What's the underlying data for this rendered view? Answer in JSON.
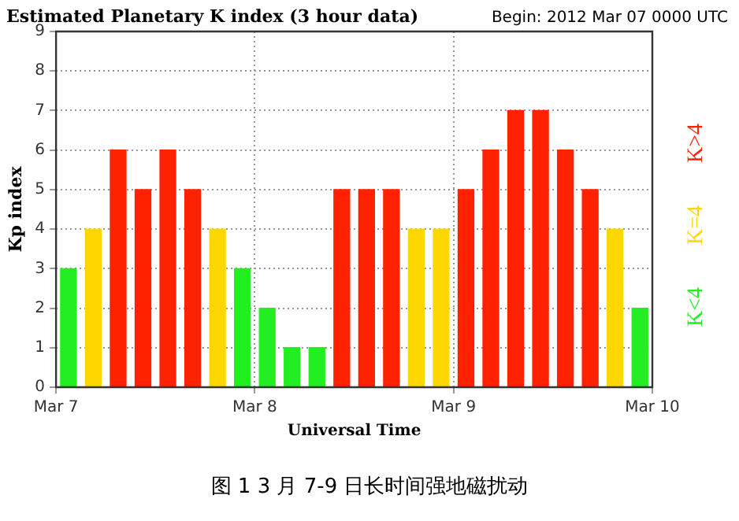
{
  "chart_data": {
    "type": "bar",
    "title": "Estimated Planetary K index (3 hour data)",
    "subtitle": "Begin: 2012 Mar 07 0000 UTC",
    "xlabel": "Universal Time",
    "ylabel": "Kp index",
    "x": [
      "2012-03-07T01:30",
      "2012-03-07T04:30",
      "2012-03-07T07:30",
      "2012-03-07T10:30",
      "2012-03-07T13:30",
      "2012-03-07T16:30",
      "2012-03-07T19:30",
      "2012-03-07T22:30",
      "2012-03-08T01:30",
      "2012-03-08T04:30",
      "2012-03-08T07:30",
      "2012-03-08T10:30",
      "2012-03-08T13:30",
      "2012-03-08T16:30",
      "2012-03-08T19:30",
      "2012-03-08T22:30",
      "2012-03-09T01:30",
      "2012-03-09T04:30",
      "2012-03-09T07:30",
      "2012-03-09T10:30",
      "2012-03-09T13:30",
      "2012-03-09T16:30",
      "2012-03-09T19:30",
      "2012-03-09T22:30"
    ],
    "series": [
      {
        "name": "K<4",
        "color": "#22ee22",
        "values": [
          3,
          null,
          null,
          null,
          null,
          null,
          null,
          3,
          2,
          1,
          1,
          null,
          null,
          null,
          null,
          null,
          null,
          null,
          null,
          null,
          null,
          null,
          null,
          2
        ]
      },
      {
        "name": "K=4",
        "color": "#ffd700",
        "values": [
          null,
          4,
          null,
          null,
          null,
          null,
          4,
          null,
          null,
          null,
          null,
          null,
          null,
          null,
          4,
          4,
          null,
          null,
          null,
          null,
          null,
          null,
          4,
          null
        ]
      },
      {
        "name": "K>4",
        "color": "#ff2200",
        "values": [
          null,
          null,
          6,
          5,
          6,
          5,
          null,
          null,
          null,
          null,
          null,
          5,
          5,
          5,
          null,
          null,
          5,
          6,
          7,
          7,
          6,
          5,
          null,
          null
        ]
      }
    ],
    "xlim": [
      "2012-03-07T00:00",
      "2012-03-10T00:00"
    ],
    "xticks": [
      {
        "value": "2012-03-07T00:00",
        "label": "Mar 7"
      },
      {
        "value": "2012-03-08T00:00",
        "label": "Mar 8"
      },
      {
        "value": "2012-03-09T00:00",
        "label": "Mar 9"
      },
      {
        "value": "2012-03-10T00:00",
        "label": "Mar 10"
      }
    ],
    "ylim": [
      0,
      9
    ],
    "yticks": [
      0,
      1,
      2,
      3,
      4,
      5,
      6,
      7,
      8,
      9
    ],
    "grid": true,
    "legend": "right",
    "annotations": [
      "图 1 3 月 7-9 日长时间强地磁扰动"
    ]
  }
}
